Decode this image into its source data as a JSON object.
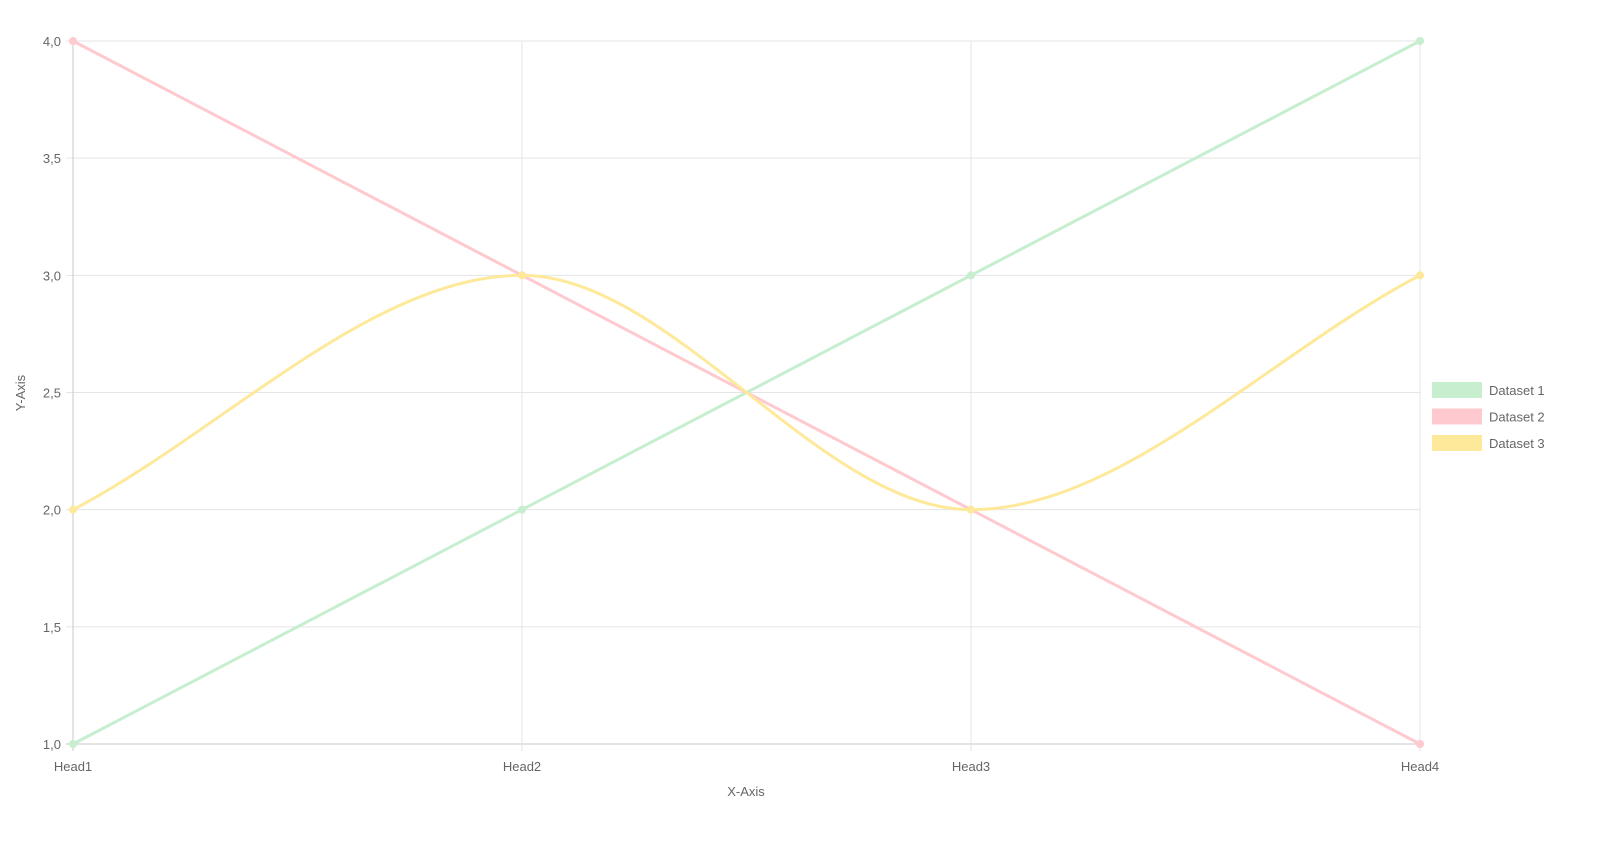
{
  "chart_data": {
    "type": "line",
    "categories": [
      "Head1",
      "Head2",
      "Head3",
      "Head4"
    ],
    "xlabel": "X-Axis",
    "ylabel": "Y-Axis",
    "ylim": [
      1.0,
      4.0
    ],
    "yticks": [
      "1,0",
      "1,5",
      "2,0",
      "2,5",
      "3,0",
      "3,5",
      "4,0"
    ],
    "grid": true,
    "legend_position": "right",
    "series": [
      {
        "name": "Dataset 1",
        "values": [
          1,
          2,
          3,
          4
        ],
        "color": "#c6eecf",
        "curve": "straight"
      },
      {
        "name": "Dataset 2",
        "values": [
          4,
          3,
          2,
          1
        ],
        "color": "#ffc9d0",
        "curve": "straight"
      },
      {
        "name": "Dataset 3",
        "values": [
          2,
          3,
          2,
          3
        ],
        "color": "#fee99a",
        "curve": "monotone"
      }
    ]
  }
}
